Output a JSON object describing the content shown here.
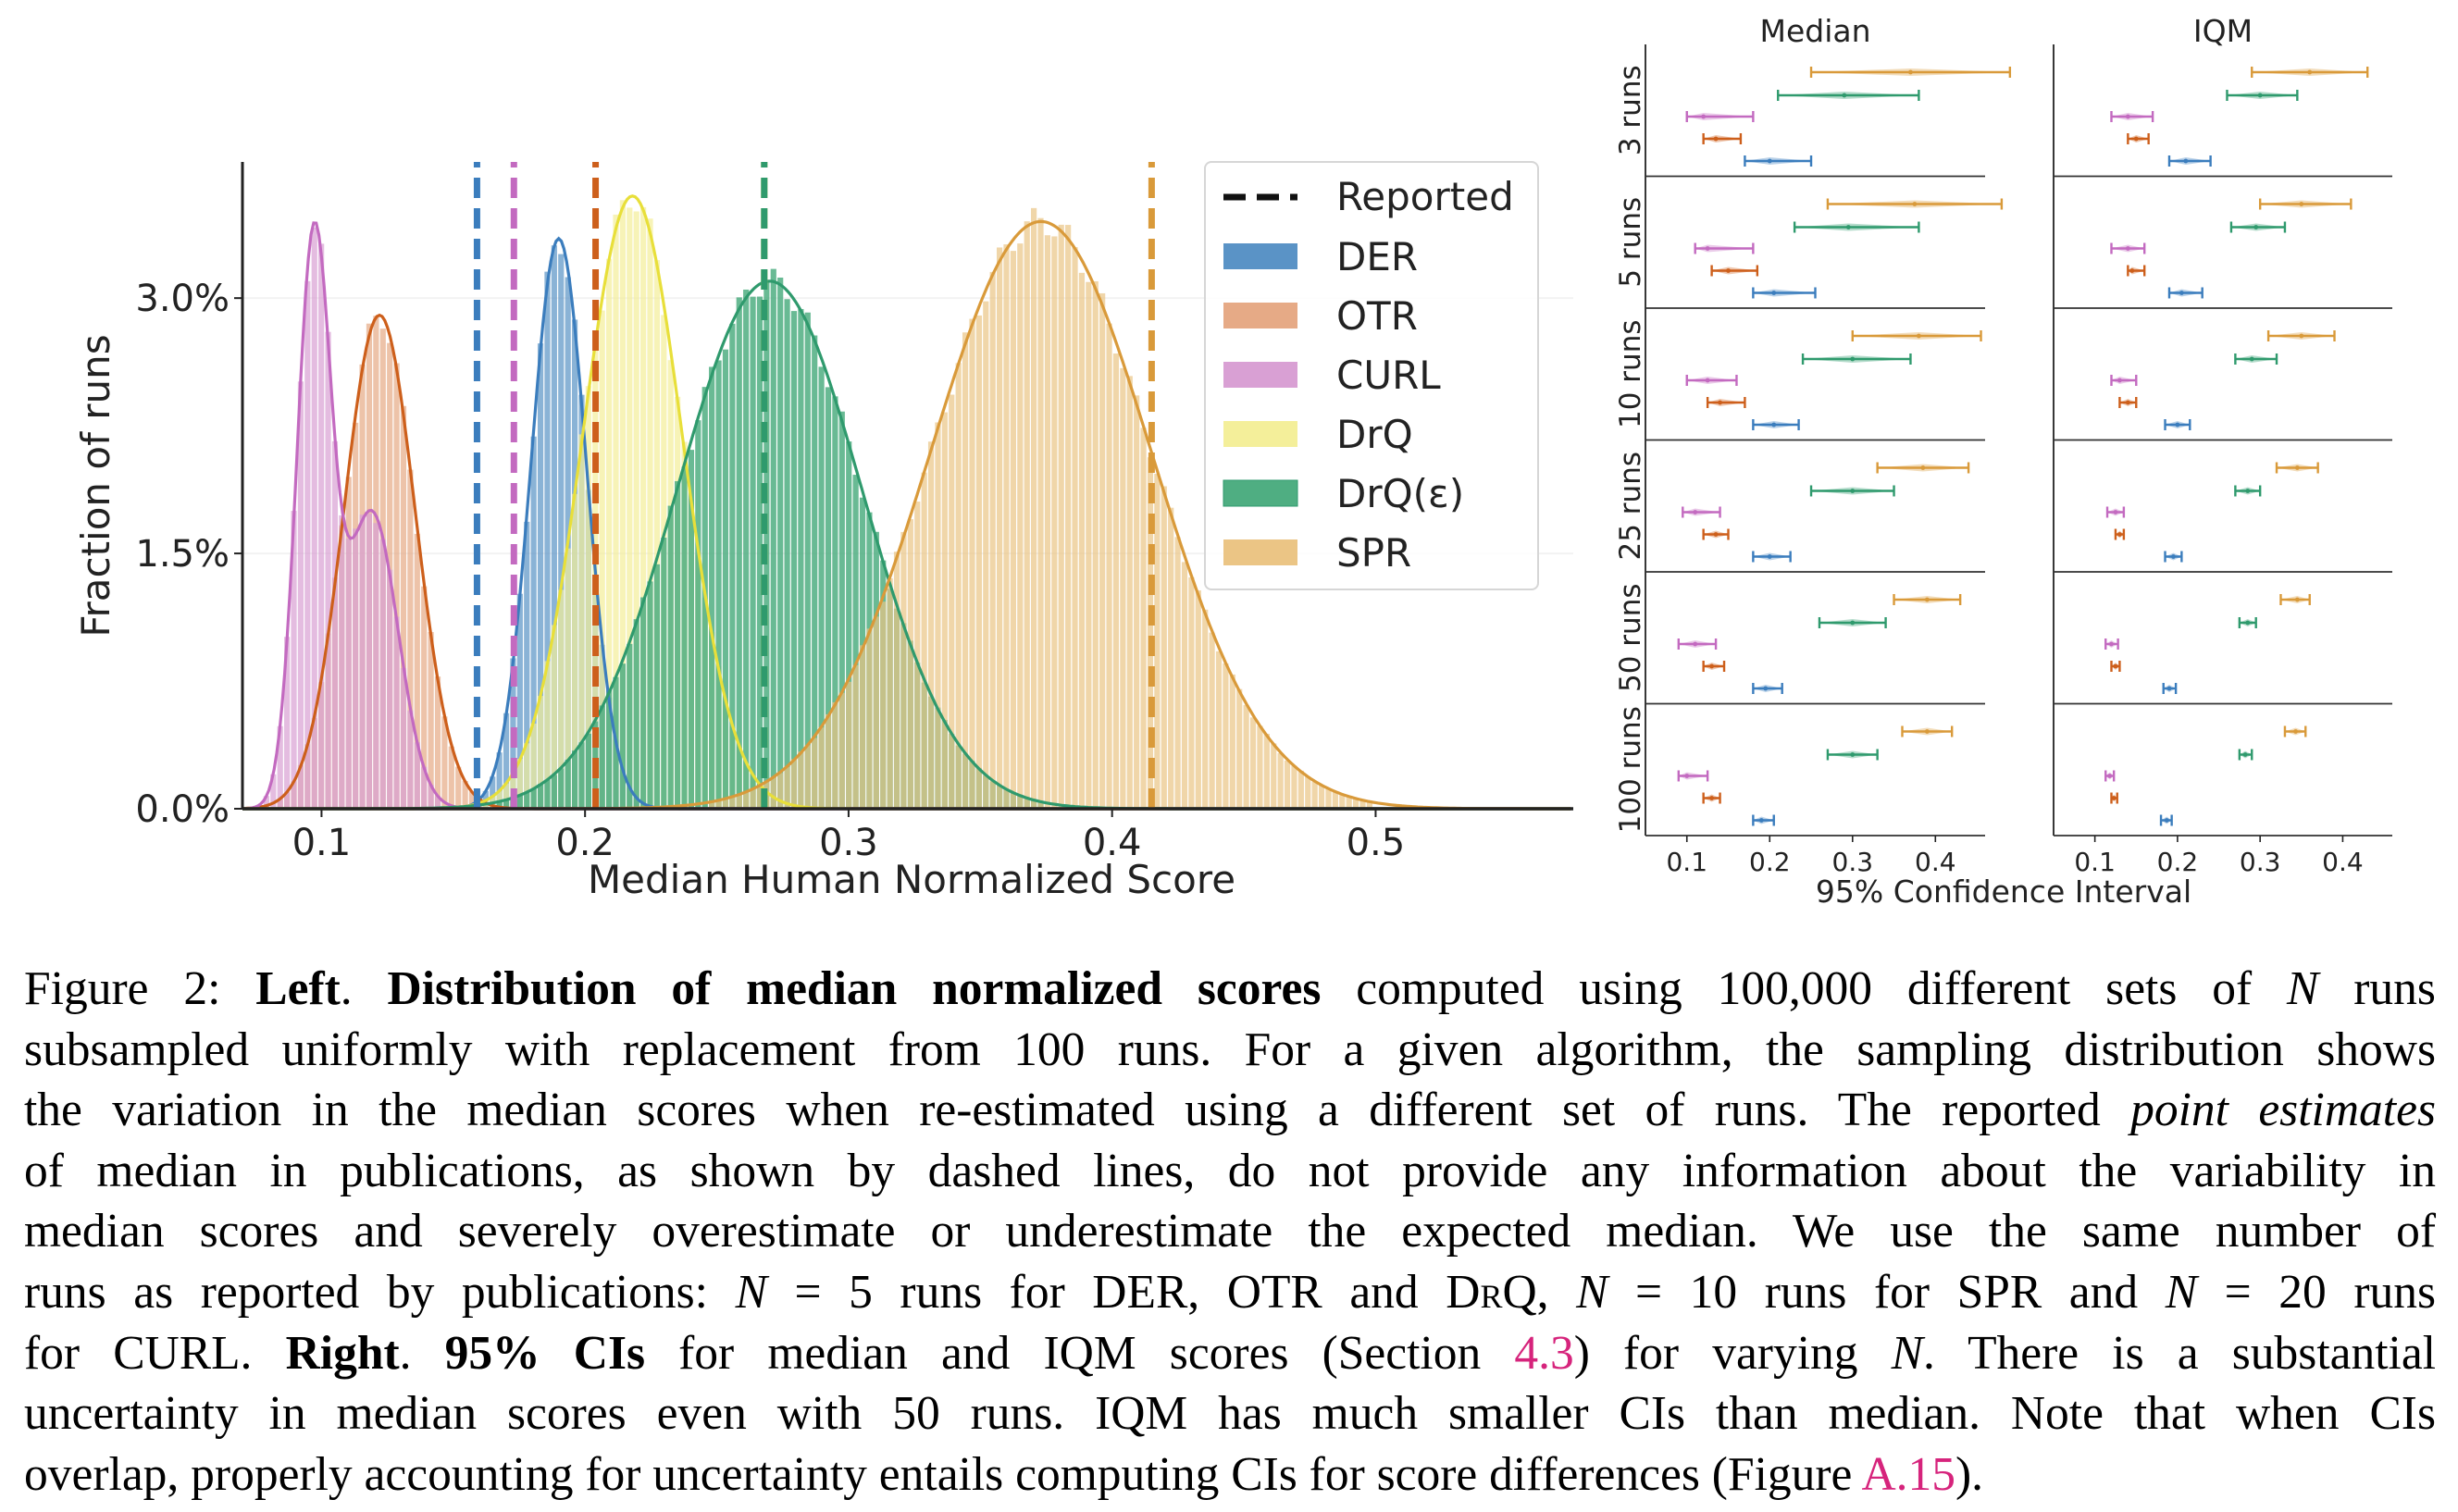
{
  "chart_data": [
    {
      "type": "histogram",
      "title": "",
      "xlabel": "Median Human Normalized Score",
      "ylabel": "Fraction of runs",
      "xlim": [
        0.07,
        0.575
      ],
      "ylim": [
        0,
        0.038
      ],
      "xticks": [
        0.1,
        0.2,
        0.3,
        0.4,
        0.5
      ],
      "xtick_labels": [
        "0.1",
        "0.2",
        "0.3",
        "0.4",
        "0.5"
      ],
      "yticks": [
        0.0,
        0.015,
        0.03
      ],
      "ytick_labels": [
        "0.0%",
        "1.5%",
        "3.0%"
      ],
      "legend_placement": "top-right",
      "legend_reported_label": "Reported",
      "series": [
        {
          "name": "DER",
          "color": "#3b7dbd",
          "bar_color": "#5a93c6",
          "mean": 0.19,
          "sd": 0.0105,
          "peak": 0.0335,
          "reported": 0.159
        },
        {
          "name": "OTR",
          "color": "#cd5f1b",
          "bar_color": "#e6aa86",
          "peak": 0.029,
          "reported": 0.204,
          "components": [
            [
              0.122,
              0.0135,
              1.0
            ]
          ]
        },
        {
          "name": "CURL",
          "color": "#c36ac0",
          "bar_color": "#d9a0d4",
          "peak": 0.0345,
          "reported": 0.173,
          "components": [
            [
              0.097,
              0.0065,
              1.0
            ],
            [
              0.119,
              0.01,
              0.53
            ]
          ]
        },
        {
          "name": "DrQ",
          "color": "#e8df3a",
          "bar_color": "#f4ef9a",
          "mean": 0.218,
          "sd": 0.019,
          "peak": 0.036,
          "reported": 0.268
        },
        {
          "name": "DrQ(ε)",
          "color": "#2f9a6d",
          "bar_color": "#4fae82",
          "mean": 0.27,
          "sd": 0.035,
          "peak": 0.031,
          "reported": 0.268
        },
        {
          "name": "SPR",
          "color": "#d99a3a",
          "bar_color": "#ebc585",
          "mean": 0.373,
          "sd": 0.042,
          "peak": 0.0345,
          "reported": 0.415
        }
      ]
    },
    {
      "type": "interval",
      "xlabel": "95% Confidence Interval",
      "panels": [
        "Median",
        "IQM"
      ],
      "row_labels": [
        "3 runs",
        "5 runs",
        "10 runs",
        "25 runs",
        "50 runs",
        "100 runs"
      ],
      "xlim": [
        0.05,
        0.46
      ],
      "xticks": [
        0.1,
        0.2,
        0.3,
        0.4
      ],
      "xtick_labels": [
        "0.1",
        "0.2",
        "0.3",
        "0.4"
      ],
      "algorithm_order": [
        "SPR",
        "DrQ(ε)",
        "CURL",
        "OTR",
        "DER"
      ],
      "median": {
        "SPR": [
          [
            0.25,
            0.37,
            0.49
          ],
          [
            0.27,
            0.375,
            0.48
          ],
          [
            0.3,
            0.38,
            0.455
          ],
          [
            0.33,
            0.385,
            0.44
          ],
          [
            0.35,
            0.39,
            0.43
          ],
          [
            0.36,
            0.39,
            0.42
          ]
        ],
        "DrQ(ε)": [
          [
            0.21,
            0.29,
            0.38
          ],
          [
            0.23,
            0.295,
            0.38
          ],
          [
            0.24,
            0.3,
            0.37
          ],
          [
            0.25,
            0.3,
            0.35
          ],
          [
            0.26,
            0.3,
            0.34
          ],
          [
            0.27,
            0.3,
            0.33
          ]
        ],
        "CURL": [
          [
            0.1,
            0.12,
            0.18
          ],
          [
            0.11,
            0.125,
            0.18
          ],
          [
            0.1,
            0.125,
            0.16
          ],
          [
            0.095,
            0.11,
            0.14
          ],
          [
            0.09,
            0.11,
            0.135
          ],
          [
            0.09,
            0.1,
            0.125
          ]
        ],
        "OTR": [
          [
            0.12,
            0.135,
            0.165
          ],
          [
            0.13,
            0.15,
            0.185
          ],
          [
            0.125,
            0.14,
            0.17
          ],
          [
            0.12,
            0.135,
            0.15
          ],
          [
            0.12,
            0.13,
            0.145
          ],
          [
            0.12,
            0.13,
            0.14
          ]
        ],
        "DER": [
          [
            0.17,
            0.2,
            0.25
          ],
          [
            0.18,
            0.205,
            0.255
          ],
          [
            0.18,
            0.205,
            0.235
          ],
          [
            0.18,
            0.2,
            0.225
          ],
          [
            0.18,
            0.195,
            0.215
          ],
          [
            0.18,
            0.19,
            0.205
          ]
        ]
      },
      "iqm": {
        "SPR": [
          [
            0.29,
            0.36,
            0.43
          ],
          [
            0.3,
            0.35,
            0.41
          ],
          [
            0.31,
            0.35,
            0.39
          ],
          [
            0.32,
            0.345,
            0.37
          ],
          [
            0.325,
            0.345,
            0.36
          ],
          [
            0.33,
            0.343,
            0.355
          ]
        ],
        "DrQ(ε)": [
          [
            0.26,
            0.3,
            0.345
          ],
          [
            0.265,
            0.295,
            0.33
          ],
          [
            0.27,
            0.29,
            0.32
          ],
          [
            0.27,
            0.285,
            0.3
          ],
          [
            0.275,
            0.285,
            0.295
          ],
          [
            0.275,
            0.282,
            0.29
          ]
        ],
        "CURL": [
          [
            0.12,
            0.14,
            0.17
          ],
          [
            0.12,
            0.14,
            0.16
          ],
          [
            0.12,
            0.13,
            0.15
          ],
          [
            0.115,
            0.125,
            0.135
          ],
          [
            0.113,
            0.12,
            0.128
          ],
          [
            0.113,
            0.118,
            0.123
          ]
        ],
        "OTR": [
          [
            0.14,
            0.15,
            0.165
          ],
          [
            0.14,
            0.145,
            0.16
          ],
          [
            0.13,
            0.14,
            0.15
          ],
          [
            0.125,
            0.13,
            0.135
          ],
          [
            0.12,
            0.125,
            0.13
          ],
          [
            0.12,
            0.123,
            0.127
          ]
        ],
        "DER": [
          [
            0.19,
            0.21,
            0.24
          ],
          [
            0.19,
            0.205,
            0.23
          ],
          [
            0.185,
            0.2,
            0.215
          ],
          [
            0.185,
            0.195,
            0.205
          ],
          [
            0.183,
            0.19,
            0.198
          ],
          [
            0.18,
            0.187,
            0.193
          ]
        ]
      }
    }
  ],
  "caption": {
    "figure_label": "Figure 2: ",
    "left_label": "Left",
    "left_title": "Distribution of median normalized scores",
    "l1a": " computed using 100,000 different sets of ",
    "N": "N",
    "l1b": " runs",
    "l2": "subsampled uniformly with replacement from 100 runs. For a given algorithm, the sampling distribution shows",
    "l3a": "the variation in the median scores when re-estimated using a different set of runs. The reported ",
    "point_estimates": "point estimates",
    "l4": "of median in publications, as shown by dashed lines, do not provide any information about the variability in",
    "l5": "median scores and severely overestimate or underestimate the expected median. We use the same number of",
    "l6a": "runs as reported by publications: ",
    "eq5": " = 5 runs for ",
    "der": "DER",
    "comma1": ", ",
    "otr": "OTR",
    "and_txt": " and ",
    "drq": "DrQ",
    "eq10": " = 10 runs for ",
    "spr": "SPR",
    "eq20": " = 20 runs",
    "for_txt": "for ",
    "curl": "CURL",
    "period": ". ",
    "right_label": "Right",
    "ci_title": "95% CIs",
    "l7b": " for median and IQM scores (Section ",
    "section_ref": "4.3",
    "l7c": ") for varying ",
    "l7d": ". There is a substantial",
    "l8": "uncertainty in median scores even with 50 runs. IQM has much smaller CIs than median. Note that when CIs",
    "l9a": "overlap, properly accounting for uncertainty entails computing CIs for score differences (Figure ",
    "figure_ref": "A.15",
    "l9b": ")."
  }
}
